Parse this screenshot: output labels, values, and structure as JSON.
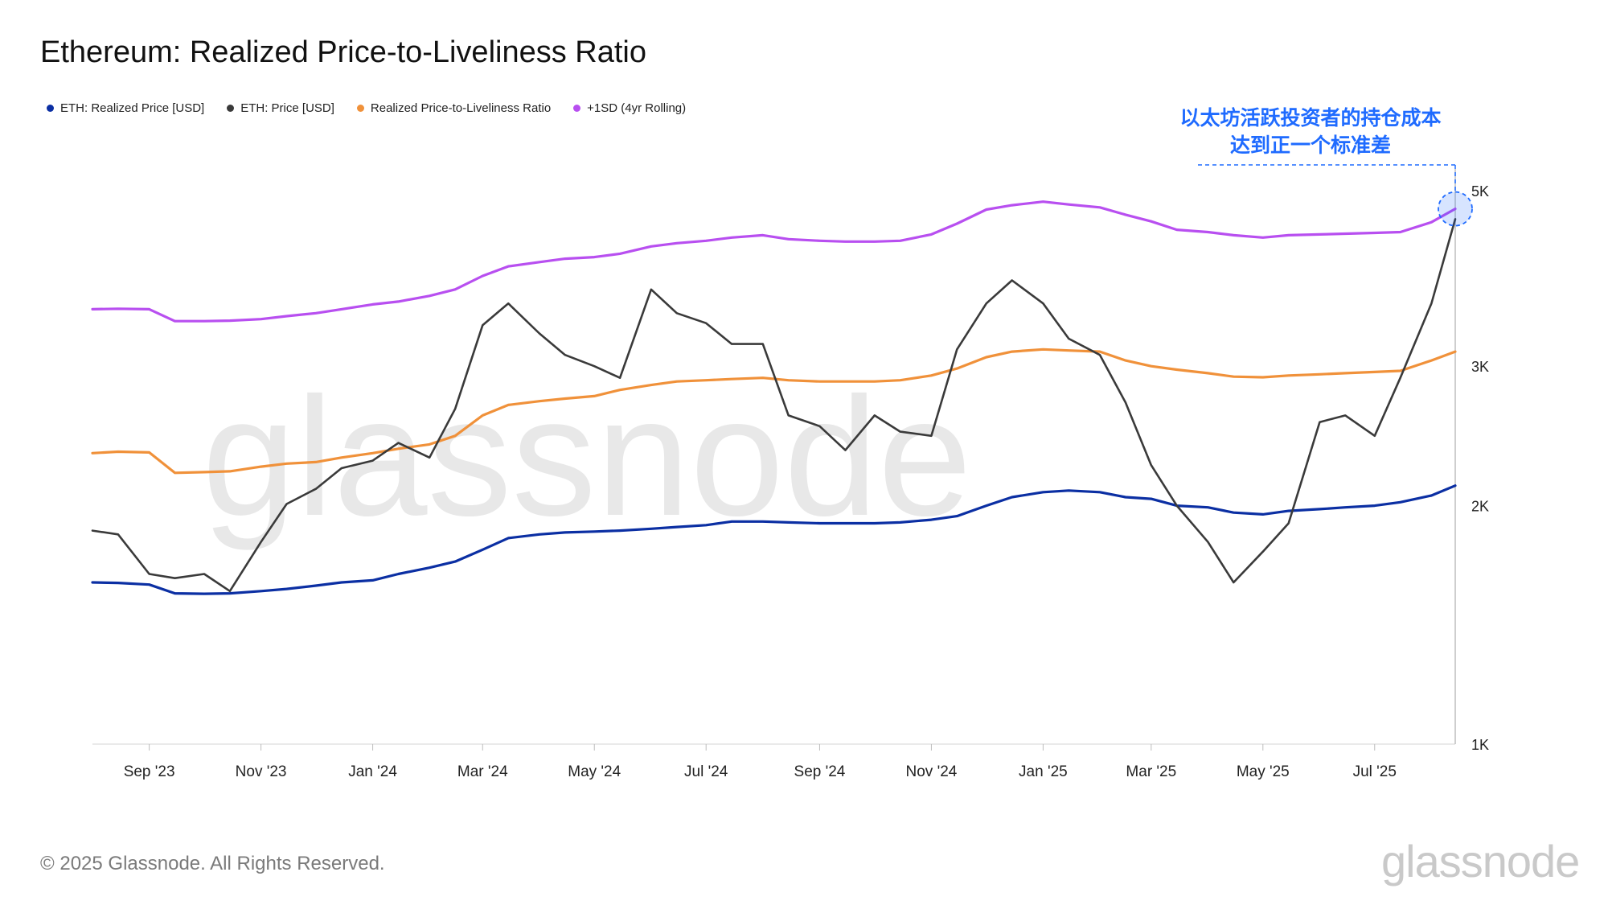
{
  "title": "Ethereum: Realized Price-to-Liveliness Ratio",
  "legend": [
    {
      "label": "ETH: Realized Price [USD]",
      "color": "#0b2fa3"
    },
    {
      "label": "ETH: Price [USD]",
      "color": "#3a3a3a"
    },
    {
      "label": "Realized Price-to-Liveliness Ratio",
      "color": "#f0913a"
    },
    {
      "label": "+1SD (4yr Rolling)",
      "color": "#b84ff0"
    }
  ],
  "annotation": {
    "line1": "以太坊活跃投资者的持仓成本",
    "line2": "达到正一个标准差",
    "color": "#1f6bff"
  },
  "watermark": "glassnode",
  "footer": "© 2025 Glassnode. All Rights Reserved.",
  "brand": "glassnode",
  "chart_data": {
    "type": "line",
    "y_scale": "log",
    "ylim": [
      1000,
      5200
    ],
    "y_ticks": [
      {
        "value": 1000,
        "label": "1K"
      },
      {
        "value": 2000,
        "label": "2K"
      },
      {
        "value": 3000,
        "label": "3K"
      },
      {
        "value": 5000,
        "label": "5K"
      }
    ],
    "x_range": [
      "2023-08-01",
      "2025-08-14"
    ],
    "x_ticks": [
      {
        "date": "2023-09-01",
        "label": "Sep '23"
      },
      {
        "date": "2023-11-01",
        "label": "Nov '23"
      },
      {
        "date": "2024-01-01",
        "label": "Jan '24"
      },
      {
        "date": "2024-03-01",
        "label": "Mar '24"
      },
      {
        "date": "2024-05-01",
        "label": "May '24"
      },
      {
        "date": "2024-07-01",
        "label": "Jul '24"
      },
      {
        "date": "2024-09-01",
        "label": "Sep '24"
      },
      {
        "date": "2024-11-01",
        "label": "Nov '24"
      },
      {
        "date": "2025-01-01",
        "label": "Jan '25"
      },
      {
        "date": "2025-03-01",
        "label": "Mar '25"
      },
      {
        "date": "2025-05-01",
        "label": "May '25"
      },
      {
        "date": "2025-07-01",
        "label": "Jul '25"
      }
    ],
    "x": [
      "2023-08-01",
      "2023-08-15",
      "2023-09-01",
      "2023-09-15",
      "2023-10-01",
      "2023-10-15",
      "2023-11-01",
      "2023-11-15",
      "2023-12-01",
      "2023-12-15",
      "2024-01-01",
      "2024-01-15",
      "2024-02-01",
      "2024-02-15",
      "2024-03-01",
      "2024-03-15",
      "2024-04-01",
      "2024-04-15",
      "2024-05-01",
      "2024-05-15",
      "2024-06-01",
      "2024-06-15",
      "2024-07-01",
      "2024-07-15",
      "2024-08-01",
      "2024-08-15",
      "2024-09-01",
      "2024-09-15",
      "2024-10-01",
      "2024-10-15",
      "2024-11-01",
      "2024-11-15",
      "2024-12-01",
      "2024-12-15",
      "2025-01-01",
      "2025-01-15",
      "2025-02-01",
      "2025-02-15",
      "2025-03-01",
      "2025-03-15",
      "2025-04-01",
      "2025-04-15",
      "2025-05-01",
      "2025-05-15",
      "2025-06-01",
      "2025-06-15",
      "2025-07-01",
      "2025-07-15",
      "2025-08-01",
      "2025-08-14"
    ],
    "series": [
      {
        "name": "ETH: Realized Price [USD]",
        "color": "#0b2fa3",
        "values": [
          1600,
          1598,
          1590,
          1550,
          1548,
          1550,
          1560,
          1570,
          1585,
          1600,
          1610,
          1640,
          1670,
          1700,
          1760,
          1820,
          1840,
          1850,
          1855,
          1860,
          1870,
          1880,
          1890,
          1910,
          1910,
          1905,
          1900,
          1900,
          1900,
          1905,
          1920,
          1940,
          2000,
          2050,
          2080,
          2090,
          2080,
          2050,
          2040,
          2000,
          1990,
          1960,
          1950,
          1970,
          1980,
          1990,
          2000,
          2020,
          2060,
          2120
        ]
      },
      {
        "name": "ETH: Price [USD]",
        "color": "#3a3a3a",
        "values": [
          1860,
          1840,
          1640,
          1620,
          1640,
          1560,
          1800,
          2010,
          2100,
          2230,
          2280,
          2400,
          2300,
          2650,
          3380,
          3600,
          3300,
          3100,
          3000,
          2900,
          3750,
          3500,
          3400,
          3200,
          3200,
          2600,
          2520,
          2350,
          2600,
          2480,
          2450,
          3150,
          3600,
          3850,
          3600,
          3250,
          3100,
          2700,
          2250,
          2000,
          1800,
          1600,
          1750,
          1900,
          2550,
          2600,
          2450,
          2900,
          3600,
          4600
        ]
      },
      {
        "name": "Realized Price-to-Liveliness Ratio",
        "color": "#f0913a",
        "values": [
          2330,
          2340,
          2335,
          2200,
          2205,
          2210,
          2240,
          2260,
          2270,
          2300,
          2330,
          2360,
          2390,
          2450,
          2600,
          2680,
          2710,
          2730,
          2750,
          2800,
          2840,
          2870,
          2880,
          2890,
          2900,
          2880,
          2870,
          2870,
          2870,
          2880,
          2920,
          2980,
          3080,
          3130,
          3150,
          3140,
          3130,
          3050,
          3000,
          2970,
          2940,
          2910,
          2905,
          2920,
          2930,
          2940,
          2950,
          2960,
          3050,
          3130
        ]
      },
      {
        "name": "+1SD (4yr Rolling)",
        "color": "#b84ff0",
        "values": [
          3540,
          3545,
          3540,
          3420,
          3420,
          3425,
          3440,
          3470,
          3500,
          3540,
          3590,
          3620,
          3680,
          3750,
          3900,
          4010,
          4060,
          4100,
          4120,
          4160,
          4250,
          4290,
          4320,
          4360,
          4390,
          4340,
          4320,
          4310,
          4310,
          4320,
          4400,
          4540,
          4730,
          4790,
          4840,
          4800,
          4760,
          4660,
          4570,
          4460,
          4430,
          4390,
          4360,
          4390,
          4400,
          4410,
          4420,
          4430,
          4560,
          4740
        ]
      }
    ],
    "highlight_point": {
      "date": "2025-08-14",
      "value": 4740
    }
  }
}
